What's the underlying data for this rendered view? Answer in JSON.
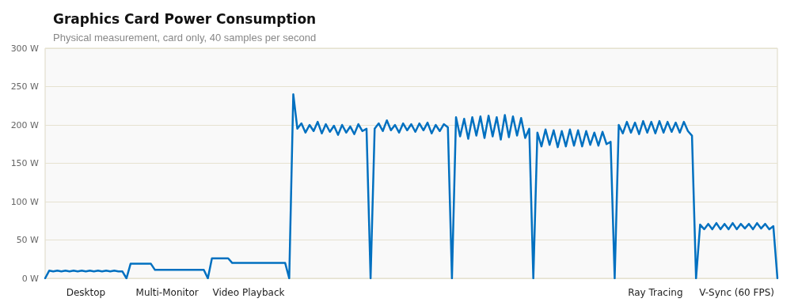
{
  "chart_data": {
    "type": "line",
    "title": "Graphics Card Power Consumption",
    "subtitle": "Physical measurement, card only, 40 samples per second",
    "categories": [
      null,
      null,
      null,
      null,
      null,
      null,
      null,
      null,
      null,
      null,
      "Desktop",
      null,
      null,
      null,
      null,
      null,
      null,
      null,
      null,
      null,
      null,
      null,
      null,
      null,
      null,
      null,
      null,
      null,
      null,
      null,
      "Multi-Monitor",
      null,
      null,
      null,
      null,
      null,
      null,
      null,
      null,
      null,
      null,
      null,
      null,
      null,
      null,
      null,
      null,
      null,
      null,
      null,
      "Video Playback",
      null,
      null,
      null,
      null,
      null,
      null,
      null,
      null,
      null,
      null,
      null,
      null,
      null,
      null,
      null,
      null,
      null,
      null,
      null,
      null,
      null,
      null,
      null,
      null,
      null,
      null,
      null,
      null,
      null,
      null,
      null,
      null,
      null,
      null,
      null,
      null,
      null,
      null,
      null,
      null,
      null,
      null,
      null,
      null,
      null,
      null,
      null,
      null,
      null,
      null,
      null,
      null,
      null,
      null,
      null,
      null,
      null,
      null,
      null,
      null,
      null,
      null,
      null,
      null,
      null,
      null,
      null,
      null,
      null,
      null,
      null,
      null,
      null,
      null,
      null,
      null,
      null,
      null,
      null,
      null,
      null,
      null,
      null,
      null,
      null,
      null,
      null,
      null,
      null,
      null,
      null,
      null,
      null,
      null,
      null,
      null,
      null,
      null,
      null,
      "Ray Tracing",
      null,
      null,
      null,
      null,
      null,
      null,
      null,
      null,
      null,
      null,
      null,
      null,
      null,
      null,
      null,
      null,
      null,
      null,
      null,
      "V-Sync (60 FPS)",
      null,
      null,
      null,
      null,
      null,
      null,
      null,
      null,
      null,
      null
    ],
    "series": [
      {
        "color": "#0070c0",
        "values": [
          0,
          10,
          9,
          10,
          9,
          10,
          9,
          10,
          9,
          10,
          9,
          10,
          9,
          10,
          9,
          10,
          9,
          10,
          9,
          9,
          0,
          19,
          19,
          19,
          19,
          19,
          19,
          11,
          11,
          11,
          11,
          11,
          11,
          11,
          11,
          11,
          11,
          11,
          11,
          11,
          0,
          26,
          26,
          26,
          26,
          26,
          20,
          20,
          20,
          20,
          20,
          20,
          20,
          20,
          20,
          20,
          20,
          20,
          20,
          20,
          0,
          240,
          195,
          202,
          190,
          200,
          192,
          204,
          189,
          201,
          191,
          199,
          187,
          200,
          190,
          198,
          188,
          201,
          192,
          195,
          0,
          195,
          202,
          192,
          206,
          193,
          200,
          190,
          202,
          193,
          201,
          191,
          202,
          193,
          203,
          189,
          200,
          192,
          201,
          197,
          0,
          210,
          185,
          208,
          182,
          210,
          186,
          211,
          183,
          212,
          185,
          210,
          181,
          213,
          184,
          211,
          186,
          209,
          183,
          195,
          0,
          190,
          172,
          194,
          174,
          193,
          171,
          192,
          172,
          194,
          173,
          193,
          172,
          192,
          174,
          190,
          173,
          191,
          175,
          178,
          0,
          200,
          189,
          204,
          190,
          203,
          188,
          205,
          190,
          204,
          189,
          205,
          190,
          204,
          191,
          203,
          190,
          204,
          192,
          186,
          0,
          70,
          64,
          71,
          64,
          72,
          64,
          71,
          64,
          72,
          64,
          71,
          65,
          71,
          64,
          72,
          65,
          71,
          64,
          68,
          0
        ]
      }
    ],
    "ylim": [
      0,
      300
    ],
    "yticks": [
      {
        "value": 0,
        "label": "0 W"
      },
      {
        "value": 50,
        "label": "50 W"
      },
      {
        "value": 100,
        "label": "100 W"
      },
      {
        "value": 150,
        "label": "150 W"
      },
      {
        "value": 200,
        "label": "200 W"
      },
      {
        "value": 250,
        "label": "250 W"
      },
      {
        "value": 300,
        "label": "300 W"
      }
    ],
    "grid": "y",
    "marker": "none",
    "line_style": "solid"
  }
}
